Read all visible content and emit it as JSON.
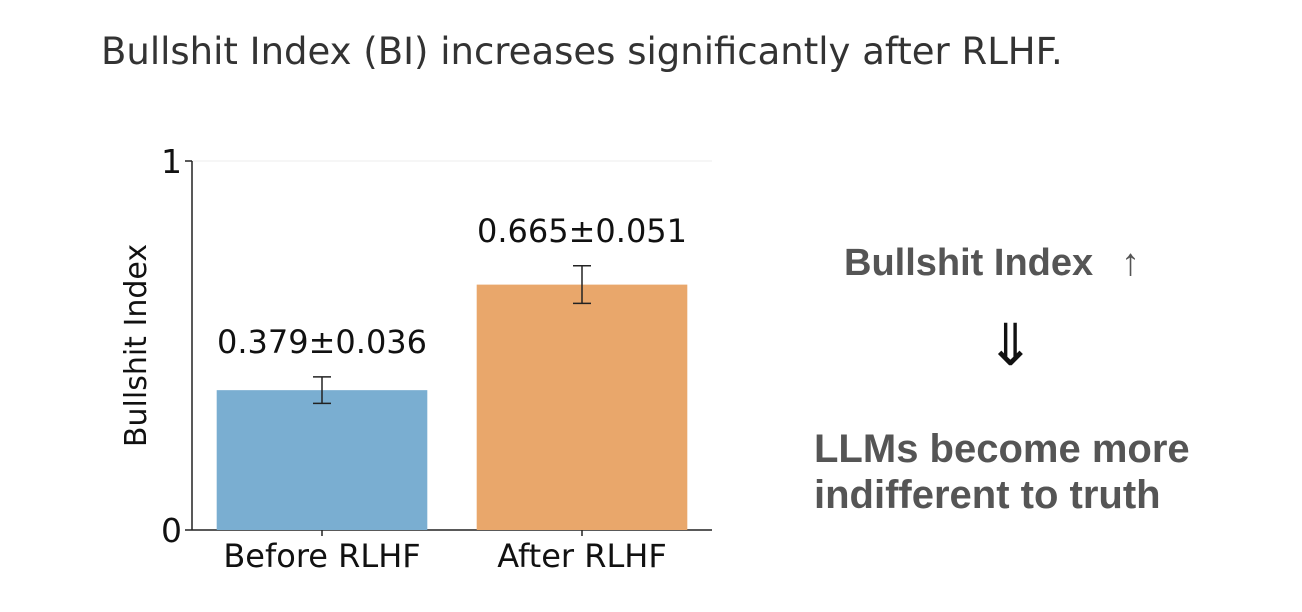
{
  "headline": "Bullshit Index (BI) increases significantly after RLHF.",
  "chart_data": {
    "type": "bar",
    "categories": [
      "Before RLHF",
      "After RLHF"
    ],
    "values": [
      0.379,
      0.665
    ],
    "errors": [
      0.036,
      0.051
    ],
    "value_labels": [
      "0.379±0.036",
      "0.665±0.051"
    ],
    "colors": [
      "#7aaed1",
      "#e9a76b"
    ],
    "ylabel": "Bullshit Index",
    "ylim": [
      0,
      1
    ],
    "yticks": [
      0,
      1
    ],
    "ytick_labels": [
      "0",
      "1"
    ],
    "grid": false
  },
  "panel": {
    "line1": "Bullshit Index",
    "up_arrow": "↑",
    "down_arrow": "⇓",
    "conclusion": "LLMs become more indifferent to truth"
  }
}
